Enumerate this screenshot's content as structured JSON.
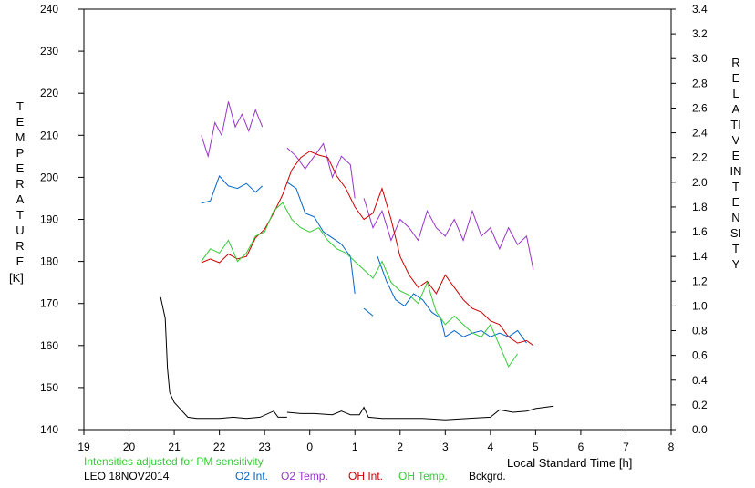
{
  "chart_data": {
    "type": "line",
    "xlabel": "Local Standard Time [h]",
    "ylabel_left": "TEMPERATURE",
    "ylabel_left_unit": "[K]",
    "ylabel_right": "RELATIVE INTENSITY",
    "note": "Intensities adjusted for PM sensitivity",
    "station": "LEO 18NOV2014",
    "x_ticks": [
      "19",
      "20",
      "21",
      "22",
      "23",
      "0",
      "1",
      "2",
      "3",
      "4",
      "5",
      "6",
      "7",
      "8"
    ],
    "xlim": [
      19,
      32
    ],
    "ylim_left": [
      140,
      240
    ],
    "ylim_right": [
      0,
      3.4
    ],
    "y_ticks_left": [
      "140",
      "150",
      "160",
      "170",
      "180",
      "190",
      "200",
      "210",
      "220",
      "230",
      "240"
    ],
    "y_ticks_right": [
      "0.0",
      "0.2",
      "0.4",
      "0.6",
      "0.8",
      "1.0",
      "1.2",
      "1.4",
      "1.6",
      "1.8",
      "2.0",
      "2.2",
      "2.4",
      "2.6",
      "2.8",
      "3.0",
      "3.2",
      "3.4"
    ],
    "grid": false,
    "series": [
      {
        "name": "O2 Int.",
        "axis": "right",
        "color": "#0066cc",
        "segments": [
          [
            [
              21.6,
              1.83
            ],
            [
              21.8,
              1.85
            ],
            [
              22.0,
              2.05
            ],
            [
              22.2,
              1.97
            ],
            [
              22.4,
              1.95
            ],
            [
              22.6,
              1.99
            ],
            [
              22.8,
              1.92
            ],
            [
              22.95,
              1.97
            ]
          ],
          [
            [
              23.5,
              2.0
            ],
            [
              23.7,
              1.95
            ],
            [
              23.9,
              1.75
            ],
            [
              24.1,
              1.72
            ],
            [
              24.3,
              1.6
            ],
            [
              24.5,
              1.55
            ],
            [
              24.7,
              1.5
            ],
            [
              24.9,
              1.4
            ],
            [
              25.0,
              1.1
            ]
          ],
          [
            [
              25.2,
              0.98
            ],
            [
              25.4,
              0.92
            ]
          ],
          [
            [
              25.5,
              1.4
            ],
            [
              25.7,
              1.2
            ],
            [
              25.9,
              1.05
            ],
            [
              26.1,
              1.0
            ],
            [
              26.3,
              1.1
            ],
            [
              26.5,
              1.05
            ],
            [
              26.7,
              0.95
            ],
            [
              26.9,
              0.9
            ],
            [
              27.0,
              0.75
            ],
            [
              27.2,
              0.8
            ],
            [
              27.4,
              0.75
            ],
            [
              27.6,
              0.78
            ],
            [
              27.8,
              0.8
            ],
            [
              28.0,
              0.75
            ],
            [
              28.2,
              0.78
            ],
            [
              28.4,
              0.75
            ],
            [
              28.6,
              0.8
            ],
            [
              28.8,
              0.7
            ]
          ]
        ]
      },
      {
        "name": "O2 Temp.",
        "axis": "left",
        "color": "#9933cc",
        "segments": [
          [
            [
              21.6,
              210
            ],
            [
              21.75,
              205
            ],
            [
              21.9,
              213
            ],
            [
              22.05,
              210
            ],
            [
              22.2,
              218
            ],
            [
              22.35,
              212
            ],
            [
              22.5,
              215
            ],
            [
              22.65,
              211
            ],
            [
              22.8,
              216
            ],
            [
              22.95,
              212
            ]
          ],
          [
            [
              23.5,
              207
            ],
            [
              23.7,
              205
            ],
            [
              23.9,
              202
            ],
            [
              24.1,
              205
            ],
            [
              24.3,
              208
            ],
            [
              24.5,
              200
            ],
            [
              24.7,
              205
            ],
            [
              24.9,
              203
            ],
            [
              25.0,
              195
            ]
          ],
          [
            [
              25.2,
              195
            ],
            [
              25.4,
              188
            ],
            [
              25.6,
              192
            ],
            [
              25.8,
              185
            ],
            [
              26.0,
              190
            ],
            [
              26.2,
              188
            ],
            [
              26.4,
              185
            ],
            [
              26.6,
              192
            ],
            [
              26.8,
              188
            ],
            [
              27.0,
              186
            ],
            [
              27.2,
              190
            ],
            [
              27.4,
              185
            ],
            [
              27.6,
              192
            ],
            [
              27.8,
              186
            ],
            [
              28.0,
              188
            ],
            [
              28.2,
              183
            ],
            [
              28.4,
              188
            ],
            [
              28.6,
              184
            ],
            [
              28.8,
              186
            ],
            [
              28.95,
              178
            ]
          ]
        ]
      },
      {
        "name": "OH Int.",
        "axis": "right",
        "color": "#cc0000",
        "segments": [
          [
            [
              21.6,
              1.35
            ],
            [
              21.8,
              1.38
            ],
            [
              22.0,
              1.35
            ],
            [
              22.2,
              1.42
            ],
            [
              22.4,
              1.38
            ],
            [
              22.6,
              1.4
            ],
            [
              22.8,
              1.55
            ],
            [
              23.0,
              1.62
            ],
            [
              23.2,
              1.75
            ],
            [
              23.4,
              1.9
            ],
            [
              23.6,
              2.1
            ],
            [
              23.8,
              2.2
            ],
            [
              24.0,
              2.25
            ],
            [
              24.2,
              2.22
            ],
            [
              24.4,
              2.2
            ],
            [
              24.6,
              2.05
            ],
            [
              24.8,
              1.95
            ],
            [
              25.0,
              1.8
            ],
            [
              25.2,
              1.7
            ],
            [
              25.4,
              1.75
            ],
            [
              25.6,
              1.95
            ],
            [
              25.8,
              1.7
            ],
            [
              26.0,
              1.4
            ],
            [
              26.2,
              1.25
            ],
            [
              26.4,
              1.15
            ],
            [
              26.6,
              1.2
            ],
            [
              26.8,
              1.1
            ],
            [
              27.0,
              1.25
            ],
            [
              27.2,
              1.15
            ],
            [
              27.4,
              1.05
            ],
            [
              27.6,
              0.98
            ],
            [
              27.8,
              0.95
            ],
            [
              28.0,
              0.88
            ],
            [
              28.2,
              0.85
            ],
            [
              28.4,
              0.75
            ],
            [
              28.6,
              0.7
            ],
            [
              28.8,
              0.72
            ],
            [
              28.95,
              0.68
            ]
          ]
        ]
      },
      {
        "name": "OH Temp.",
        "axis": "left",
        "color": "#33cc33",
        "segments": [
          [
            [
              21.6,
              180
            ],
            [
              21.8,
              183
            ],
            [
              22.0,
              182
            ],
            [
              22.2,
              185
            ],
            [
              22.4,
              180
            ],
            [
              22.6,
              182
            ],
            [
              22.8,
              186
            ],
            [
              23.0,
              187
            ],
            [
              23.2,
              192
            ],
            [
              23.4,
              194
            ],
            [
              23.6,
              190
            ],
            [
              23.8,
              188
            ],
            [
              24.0,
              187
            ],
            [
              24.2,
              188
            ],
            [
              24.4,
              185
            ],
            [
              24.6,
              183
            ],
            [
              24.8,
              182
            ],
            [
              25.0,
              180
            ],
            [
              25.2,
              178
            ],
            [
              25.4,
              176
            ],
            [
              25.6,
              180
            ],
            [
              25.8,
              175
            ],
            [
              26.0,
              173
            ],
            [
              26.2,
              172
            ],
            [
              26.4,
              170
            ],
            [
              26.6,
              175
            ],
            [
              26.8,
              168
            ],
            [
              27.0,
              165
            ],
            [
              27.2,
              167
            ],
            [
              27.4,
              165
            ],
            [
              27.6,
              163
            ],
            [
              27.8,
              162
            ],
            [
              28.0,
              165
            ],
            [
              28.2,
              160
            ],
            [
              28.4,
              155
            ],
            [
              28.6,
              158
            ]
          ]
        ]
      },
      {
        "name": "Bckgrd.",
        "axis": "right",
        "color": "#000000",
        "segments": [
          [
            [
              20.7,
              1.07
            ],
            [
              20.8,
              0.9
            ],
            [
              20.85,
              0.5
            ],
            [
              20.9,
              0.3
            ],
            [
              21.0,
              0.22
            ],
            [
              21.1,
              0.18
            ],
            [
              21.3,
              0.1
            ],
            [
              21.5,
              0.09
            ],
            [
              21.7,
              0.09
            ],
            [
              22.0,
              0.09
            ],
            [
              22.3,
              0.1
            ],
            [
              22.6,
              0.09
            ],
            [
              22.9,
              0.1
            ],
            [
              23.2,
              0.15
            ],
            [
              23.3,
              0.1
            ],
            [
              23.5,
              0.1
            ]
          ],
          [
            [
              23.5,
              0.14
            ],
            [
              23.8,
              0.13
            ],
            [
              24.1,
              0.13
            ],
            [
              24.5,
              0.12
            ],
            [
              24.7,
              0.15
            ],
            [
              24.9,
              0.12
            ],
            [
              25.1,
              0.12
            ],
            [
              25.2,
              0.18
            ],
            [
              25.3,
              0.1
            ],
            [
              25.6,
              0.09
            ],
            [
              26.0,
              0.09
            ],
            [
              26.5,
              0.09
            ],
            [
              27.0,
              0.08
            ],
            [
              27.5,
              0.09
            ],
            [
              28.0,
              0.1
            ],
            [
              28.2,
              0.16
            ],
            [
              28.5,
              0.14
            ],
            [
              28.8,
              0.15
            ],
            [
              29.0,
              0.17
            ],
            [
              29.4,
              0.19
            ]
          ]
        ]
      }
    ]
  }
}
